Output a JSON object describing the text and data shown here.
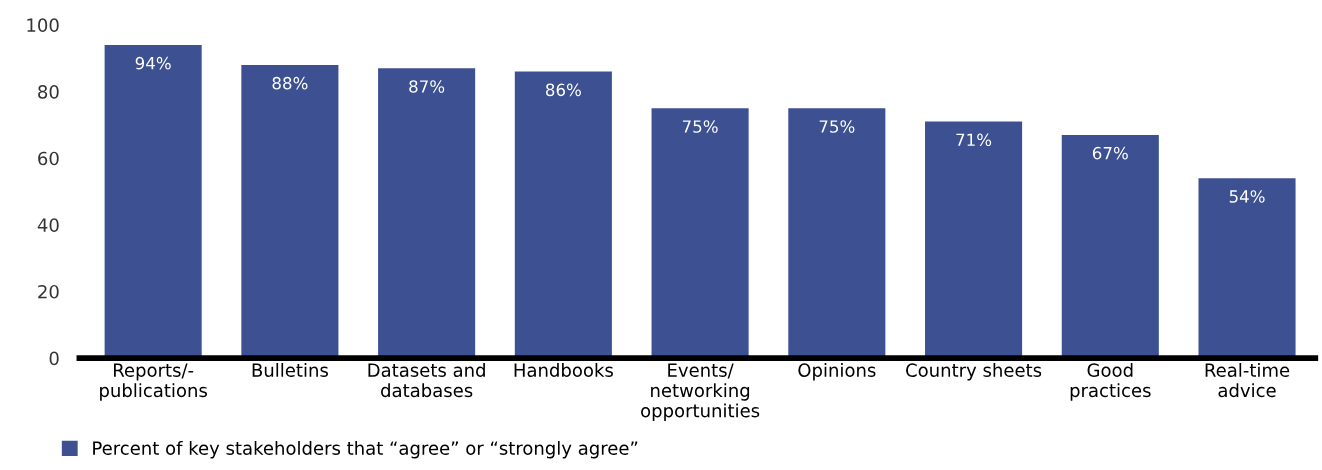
{
  "chart_data": {
    "type": "bar",
    "categories": [
      "Reports/-\npublications",
      "Bulletins",
      "Datasets and\ndatabases",
      "Handbooks",
      "Events/\nnetworking\nopportunities",
      "Opinions",
      "Country sheets",
      "Good\npractices",
      "Real-time\nadvice"
    ],
    "series": [
      {
        "name": "Percent of key stakeholders that “agree” or “strongly agree”",
        "color": "#3d5192",
        "values": [
          94,
          88,
          87,
          86,
          75,
          75,
          71,
          67,
          54
        ],
        "value_labels": [
          "94%",
          "88%",
          "87%",
          "86%",
          "75%",
          "75%",
          "71%",
          "67%",
          "54%"
        ]
      }
    ],
    "ylim": [
      0,
      100
    ],
    "yticks": [
      0,
      20,
      40,
      60,
      80,
      100
    ],
    "grid": false,
    "legend": "bottom left"
  }
}
